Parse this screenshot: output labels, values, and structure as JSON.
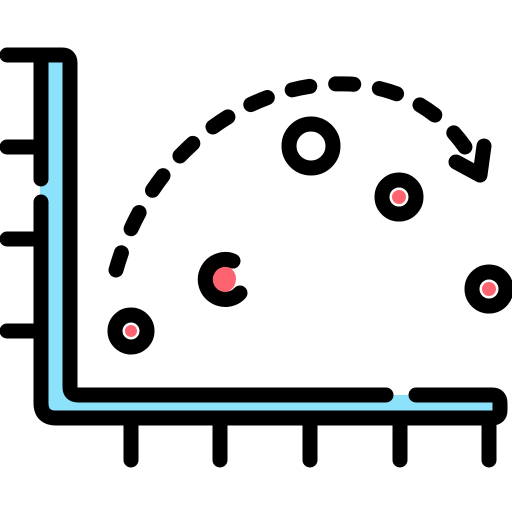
{
  "icon": {
    "name": "scatter-plot-trend-icon",
    "colors": {
      "outline": "#000000",
      "axis_fill": "#8be2fa",
      "dot_fill": "#fe646f",
      "dot_shade": "#fd4755",
      "background": "#ffffff"
    }
  }
}
